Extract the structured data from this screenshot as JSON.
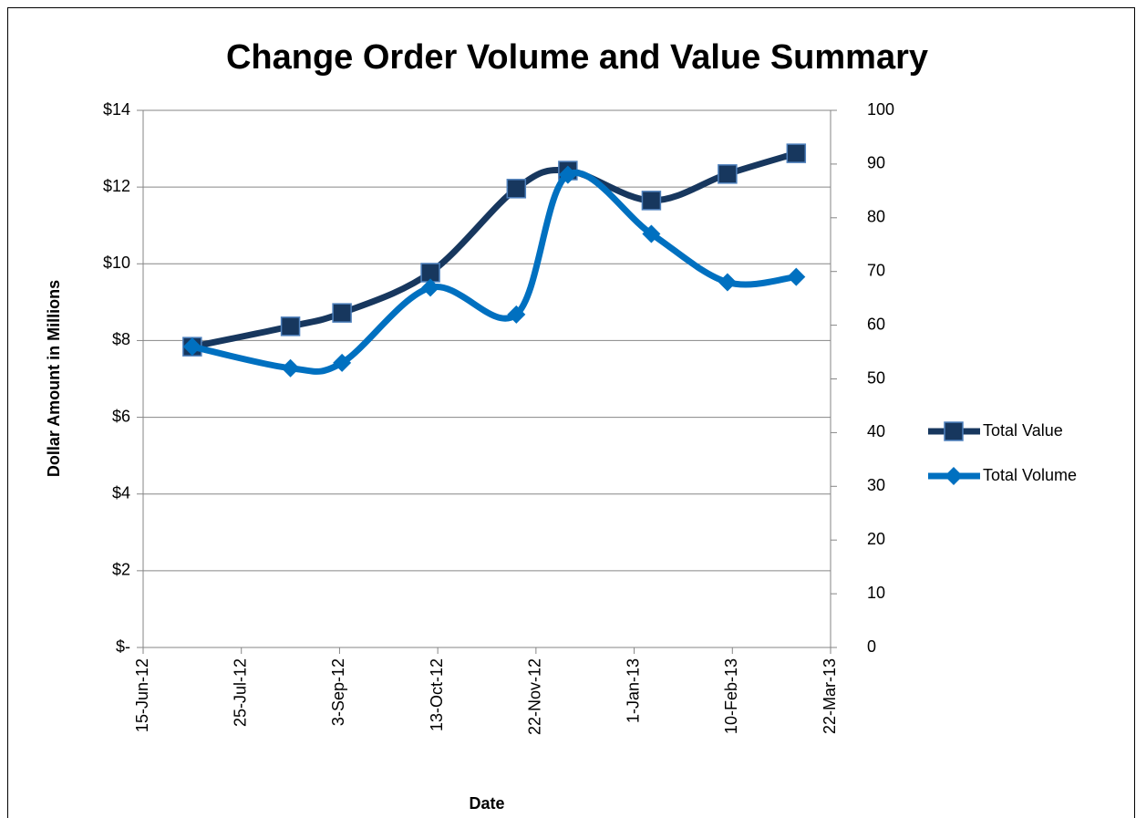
{
  "chart_data": {
    "type": "line",
    "title": "Change Order Volume and Value Summary",
    "x_label": "Date",
    "y_label": "Dollar Amount in Millions",
    "x": [
      "5-Jul-12",
      "14-Aug-12",
      "4-Sep-12",
      "10-Oct-12",
      "14-Nov-12",
      "5-Dec-12",
      "8-Jan-13",
      "8-Feb-13",
      "8-Mar-13"
    ],
    "series": [
      {
        "name": "Total Value",
        "color": "#17375e",
        "marker": "square",
        "values": [
          7.84,
          8.37,
          8.72,
          9.77,
          11.96,
          12.43,
          11.65,
          12.34,
          12.88
        ]
      },
      {
        "name": "Total Volume",
        "color": "#0070c0",
        "marker": "diamond",
        "axis": "y2",
        "values": [
          56,
          52,
          53,
          67,
          62,
          88,
          77,
          68,
          69
        ]
      }
    ],
    "xlim": [
      "15-Jun-12",
      "22-Mar-13"
    ],
    "xticks": [
      "15-Jun-12",
      "25-Jul-12",
      "3-Sep-12",
      "13-Oct-12",
      "22-Nov-12",
      "1-Jan-13",
      "10-Feb-13",
      "22-Mar-13"
    ],
    "ylim": [
      0,
      14
    ],
    "yticks": [
      {
        "value": 0,
        "label": "$-"
      },
      {
        "value": 2,
        "label": "$2"
      },
      {
        "value": 4,
        "label": "$4"
      },
      {
        "value": 6,
        "label": "$6"
      },
      {
        "value": 8,
        "label": "$8"
      },
      {
        "value": 10,
        "label": "$10"
      },
      {
        "value": 12,
        "label": "$12"
      },
      {
        "value": 14,
        "label": "$14"
      }
    ],
    "y2lim": [
      0,
      100
    ],
    "y2ticks": [
      0,
      10,
      20,
      30,
      40,
      50,
      60,
      70,
      80,
      90,
      100
    ],
    "grid": true,
    "smooth": true,
    "legend": "right"
  }
}
